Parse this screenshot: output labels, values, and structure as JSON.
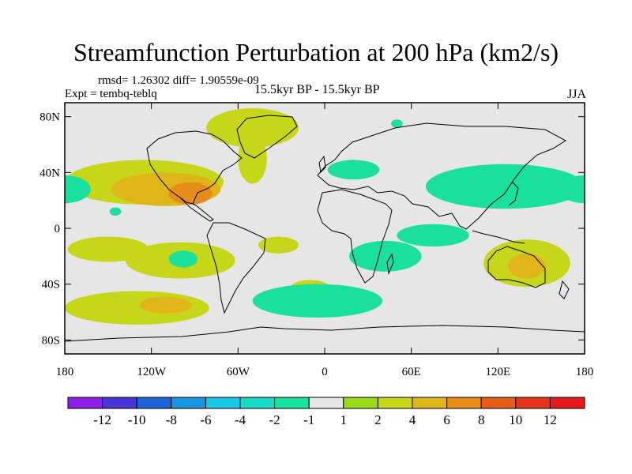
{
  "title": "Streamfunction Perturbation at 200 hPa (km2/s)",
  "stats": "rmsd= 1.26302 diff= 1.90559e-09",
  "expt": "Expt = tembq-teblq",
  "period": "15.5kyr BP - 15.5kyr BP",
  "season": "JJA",
  "map": {
    "lon_range": [
      -180,
      180
    ],
    "lat_range": [
      -90,
      90
    ],
    "lon_ticks": [
      {
        "value": -180,
        "label": "180"
      },
      {
        "value": -120,
        "label": "120W"
      },
      {
        "value": -60,
        "label": "60W"
      },
      {
        "value": 0,
        "label": "0"
      },
      {
        "value": 60,
        "label": "60E"
      },
      {
        "value": 120,
        "label": "120E"
      },
      {
        "value": 180,
        "label": "180"
      }
    ],
    "lat_ticks": [
      {
        "value": 80,
        "label": "80N"
      },
      {
        "value": 40,
        "label": "40N"
      },
      {
        "value": 0,
        "label": "0"
      },
      {
        "value": -40,
        "label": "40S"
      },
      {
        "value": -80,
        "label": "80S"
      }
    ],
    "background_color": "#e6e6e6",
    "anomalies": [
      {
        "name": "North Pacific-North America",
        "lon": -125,
        "lat": 33,
        "rlon": 55,
        "rlat": 16,
        "value": 2
      },
      {
        "name": "Central America",
        "lon": -110,
        "lat": 28,
        "rlon": 38,
        "rlat": 12,
        "value": 4
      },
      {
        "name": "Gulf of Mexico",
        "lon": -93,
        "lat": 25,
        "rlon": 15,
        "rlat": 8,
        "value": 6
      },
      {
        "name": "Greenland",
        "lon": -50,
        "lat": 72,
        "rlon": 32,
        "rlat": 14,
        "value": 2
      },
      {
        "name": "Greenland arm",
        "lon": -50,
        "lat": 50,
        "rlon": 10,
        "rlat": 18,
        "value": 2
      },
      {
        "name": "Europe",
        "lon": 20,
        "lat": 42,
        "rlon": 18,
        "rlat": 7,
        "value": -1
      },
      {
        "name": "Central Pacific west",
        "lon": -180,
        "lat": 28,
        "rlon": 18,
        "rlat": 10,
        "value": -1
      },
      {
        "name": "Hawaii",
        "lon": -145,
        "lat": 12,
        "rlon": 4,
        "rlat": 3,
        "value": -2
      },
      {
        "name": "Asia-North Pacific",
        "lon": 125,
        "lat": 30,
        "rlon": 55,
        "rlat": 16,
        "value": -1
      },
      {
        "name": "Asia-North Pacific core",
        "lon": 130,
        "lat": 30,
        "rlon": 35,
        "rlat": 8,
        "value": -2
      },
      {
        "name": "Central South Pacific",
        "lon": -150,
        "lat": -15,
        "rlon": 28,
        "rlat": 9,
        "value": 2
      },
      {
        "name": "Southeast Pacific",
        "lon": -100,
        "lat": -23,
        "rlon": 38,
        "rlat": 13,
        "value": 2
      },
      {
        "name": "Southeast Pacific core",
        "lon": -98,
        "lat": -22,
        "rlon": 10,
        "rlat": 6,
        "value": -1
      },
      {
        "name": "Southeast Pacific inner",
        "lon": -96,
        "lat": -21,
        "rlon": 4,
        "rlat": 3,
        "value": -2
      },
      {
        "name": "Southern Ocean Pacific",
        "lon": -130,
        "lat": -57,
        "rlon": 50,
        "rlat": 12,
        "value": 2
      },
      {
        "name": "Southern Ocean Pacific core",
        "lon": -110,
        "lat": -55,
        "rlon": 18,
        "rlat": 6,
        "value": 4
      },
      {
        "name": "South Atlantic small",
        "lon": -32,
        "lat": -12,
        "rlon": 14,
        "rlat": 6,
        "value": 2
      },
      {
        "name": "South Atlantic band",
        "lon": -10,
        "lat": -43,
        "rlon": 14,
        "rlat": 6,
        "value": 2
      },
      {
        "name": "South Atlantic-Southern Ocean",
        "lon": -5,
        "lat": -52,
        "rlon": 45,
        "rlat": 12,
        "value": -1
      },
      {
        "name": "Southern Africa",
        "lon": 42,
        "lat": -20,
        "rlon": 25,
        "rlat": 11,
        "value": -1
      },
      {
        "name": "Southern Africa core",
        "lon": 40,
        "lat": -20,
        "rlon": 12,
        "rlat": 6,
        "value": -2
      },
      {
        "name": "Indian Ocean band",
        "lon": 75,
        "lat": -5,
        "rlon": 25,
        "rlat": 8,
        "value": -1
      },
      {
        "name": "Australia",
        "lon": 140,
        "lat": -25,
        "rlon": 30,
        "rlat": 17,
        "value": 2
      },
      {
        "name": "Australia core",
        "lon": 140,
        "lat": -27,
        "rlon": 13,
        "rlat": 9,
        "value": 4
      },
      {
        "name": "East Asia small",
        "lon": 50,
        "lat": 75,
        "rlon": 4,
        "rlat": 3,
        "value": -1
      }
    ]
  },
  "colorbar": {
    "colors": [
      "#8b1fe8",
      "#4a35d6",
      "#1e63d6",
      "#1a96e0",
      "#19c6e6",
      "#19d9c9",
      "#19e09f",
      "#e6e6e6",
      "#99db19",
      "#c7d619",
      "#e0b519",
      "#e68c19",
      "#e65c19",
      "#e63419",
      "#e61919"
    ],
    "labels": [
      "-12",
      "-10",
      "-8",
      "-6",
      "-4",
      "-2",
      "-1",
      "1",
      "2",
      "4",
      "6",
      "8",
      "10",
      "12"
    ]
  }
}
